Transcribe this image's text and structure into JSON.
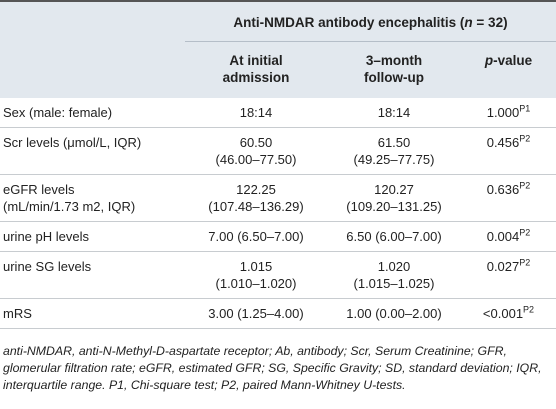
{
  "table": {
    "group_title": [
      "Anti-NMDAR antibody encephalitis (",
      "n",
      " = 32)"
    ],
    "columns": [
      [
        "At initial",
        "admission"
      ],
      [
        "3–month",
        "follow-up"
      ],
      [
        "p",
        "-value"
      ]
    ],
    "rows": [
      {
        "label": [
          "Sex (male: female)"
        ],
        "initial": [
          "18:14"
        ],
        "followup": [
          "18:14"
        ],
        "p": "1.000",
        "test": "P1"
      },
      {
        "label": [
          "Scr levels (μmol/L, IQR)"
        ],
        "initial": [
          "60.50",
          "(46.00–77.50)"
        ],
        "followup": [
          "61.50",
          "(49.25–77.75)"
        ],
        "p": "0.456",
        "test": "P2"
      },
      {
        "label": [
          "eGFR levels",
          "(mL/min/1.73 m2, IQR)"
        ],
        "initial": [
          "122.25",
          "(107.48–136.29)"
        ],
        "followup": [
          "120.27",
          "(109.20–131.25)"
        ],
        "p": "0.636",
        "test": "P2"
      },
      {
        "label": [
          "urine pH levels"
        ],
        "initial": [
          "7.00 (6.50–7.00)"
        ],
        "followup": [
          "6.50 (6.00–7.00)"
        ],
        "p": "0.004",
        "test": "P2"
      },
      {
        "label": [
          "urine SG levels"
        ],
        "initial": [
          "1.015",
          "(1.010–1.020)"
        ],
        "followup": [
          "1.020",
          "(1.015–1.025)"
        ],
        "p": "0.027",
        "test": "P2"
      },
      {
        "label": [
          "mRS"
        ],
        "initial": [
          "3.00 (1.25–4.00)"
        ],
        "followup": [
          "1.00 (0.00–2.00)"
        ],
        "p": "<0.001",
        "test": "P2"
      }
    ],
    "footnote": "anti-NMDAR, anti-N-Methyl-D-aspartate receptor; Ab, antibody; Scr, Serum Creatinine; GFR, glomerular filtration rate; eGFR, estimated GFR; SG, Specific Gravity; SD, standard deviation; IQR, interquartile range. P1, Chi-square test; P2, paired Mann-Whitney U-tests."
  }
}
